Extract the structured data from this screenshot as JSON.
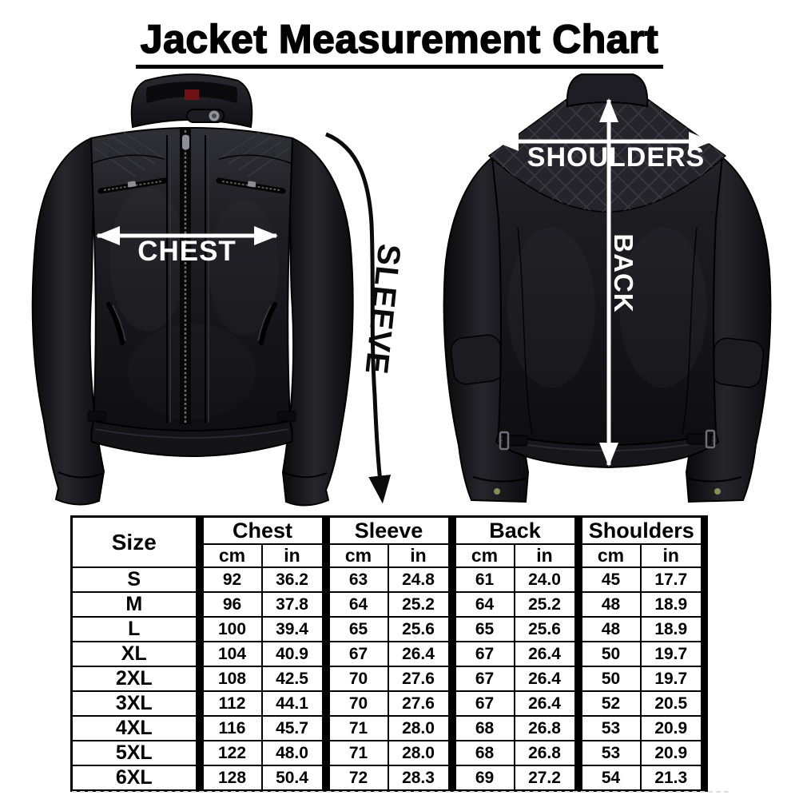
{
  "title": "Jacket Measurement Chart",
  "diagram": {
    "chest_label": "CHEST",
    "sleeve_label": "SLEEVE",
    "shoulders_label": "SHOULDERS",
    "back_label": "BACK"
  },
  "table": {
    "size_header": "Size",
    "groups": [
      {
        "label": "Chest",
        "units": [
          "cm",
          "in"
        ]
      },
      {
        "label": "Sleeve",
        "units": [
          "cm",
          "in"
        ]
      },
      {
        "label": "Back",
        "units": [
          "cm",
          "in"
        ]
      },
      {
        "label": "Shoulders",
        "units": [
          "cm",
          "in"
        ]
      }
    ],
    "rows": [
      {
        "size": "S",
        "values": [
          "92",
          "36.2",
          "63",
          "24.8",
          "61",
          "24.0",
          "45",
          "17.7"
        ]
      },
      {
        "size": "M",
        "values": [
          "96",
          "37.8",
          "64",
          "25.2",
          "64",
          "25.2",
          "48",
          "18.9"
        ]
      },
      {
        "size": "L",
        "values": [
          "100",
          "39.4",
          "65",
          "25.6",
          "65",
          "25.6",
          "48",
          "18.9"
        ]
      },
      {
        "size": "XL",
        "values": [
          "104",
          "40.9",
          "67",
          "26.4",
          "67",
          "26.4",
          "50",
          "19.7"
        ]
      },
      {
        "size": "2XL",
        "values": [
          "108",
          "42.5",
          "70",
          "27.6",
          "67",
          "26.4",
          "50",
          "19.7"
        ]
      },
      {
        "size": "3XL",
        "values": [
          "112",
          "44.1",
          "70",
          "27.6",
          "67",
          "26.4",
          "52",
          "20.5"
        ]
      },
      {
        "size": "4XL",
        "values": [
          "116",
          "45.7",
          "71",
          "28.0",
          "68",
          "26.8",
          "53",
          "20.9"
        ]
      },
      {
        "size": "5XL",
        "values": [
          "122",
          "48.0",
          "71",
          "28.0",
          "68",
          "26.8",
          "53",
          "20.9"
        ]
      },
      {
        "size": "6XL",
        "values": [
          "128",
          "50.4",
          "72",
          "28.3",
          "69",
          "27.2",
          "54",
          "21.3"
        ]
      }
    ]
  },
  "colors": {
    "background": "#ffffff",
    "text": "#000000",
    "arrow_white": "#ffffff",
    "arrow_black": "#0b0b0b",
    "table_border": "#000000",
    "leather_dark": "#141418"
  },
  "chart_data": {
    "type": "table",
    "title": "Jacket Measurement Chart",
    "columns": [
      "Size",
      "Chest (cm)",
      "Chest (in)",
      "Sleeve (cm)",
      "Sleeve (in)",
      "Back (cm)",
      "Back (in)",
      "Shoulders (cm)",
      "Shoulders (in)"
    ],
    "rows": [
      [
        "S",
        92,
        36.2,
        63,
        24.8,
        61,
        24.0,
        45,
        17.7
      ],
      [
        "M",
        96,
        37.8,
        64,
        25.2,
        64,
        25.2,
        48,
        18.9
      ],
      [
        "L",
        100,
        39.4,
        65,
        25.6,
        65,
        25.6,
        48,
        18.9
      ],
      [
        "XL",
        104,
        40.9,
        67,
        26.4,
        67,
        26.4,
        50,
        19.7
      ],
      [
        "2XL",
        108,
        42.5,
        70,
        27.6,
        67,
        26.4,
        50,
        19.7
      ],
      [
        "3XL",
        112,
        44.1,
        70,
        27.6,
        67,
        26.4,
        52,
        20.5
      ],
      [
        "4XL",
        116,
        45.7,
        71,
        28.0,
        68,
        26.8,
        53,
        20.9
      ],
      [
        "5XL",
        122,
        48.0,
        71,
        28.0,
        68,
        26.8,
        53,
        20.9
      ],
      [
        "6XL",
        128,
        50.4,
        72,
        28.3,
        69,
        27.2,
        54,
        21.3
      ]
    ]
  }
}
